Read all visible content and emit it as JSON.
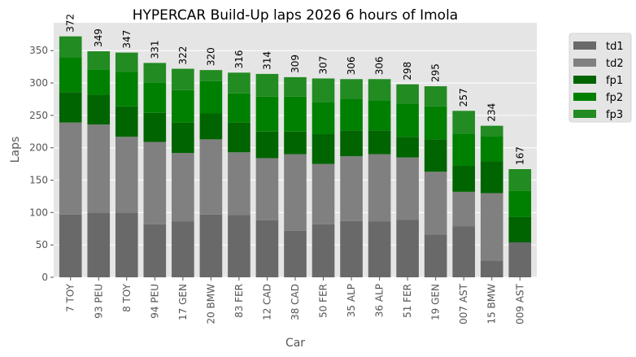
{
  "chart_data": {
    "type": "bar",
    "stacked": true,
    "title": "HYPERCAR Build-Up laps 2026 6 hours of Imola",
    "xlabel": "Car",
    "ylabel": "Laps",
    "ylim": [
      0,
      393
    ],
    "yticks": [
      0,
      50,
      100,
      150,
      200,
      250,
      300,
      350
    ],
    "grid": true,
    "legend_position": "outside-top-right",
    "categories": [
      "7 TOY",
      "93 PEU",
      "8 TOY",
      "94 PEU",
      "17 GEN",
      "20 BMW",
      "83 FER",
      "12 CAD",
      "38 CAD",
      "50 FER",
      "35 ALP",
      "36 ALP",
      "51 FER",
      "19 GEN",
      "007 AST",
      "15 BMW",
      "009 AST"
    ],
    "totals": [
      372,
      349,
      347,
      331,
      322,
      320,
      316,
      314,
      309,
      307,
      306,
      306,
      298,
      295,
      257,
      234,
      167
    ],
    "series": [
      {
        "name": "td1",
        "color": "#696969",
        "values": [
          97,
          100,
          100,
          82,
          86,
          97,
          96,
          88,
          72,
          82,
          87,
          86,
          89,
          66,
          79,
          26,
          54
        ]
      },
      {
        "name": "td2",
        "color": "#808080",
        "values": [
          142,
          136,
          117,
          127,
          106,
          116,
          97,
          96,
          118,
          93,
          100,
          104,
          96,
          97,
          53,
          104,
          0
        ]
      },
      {
        "name": "fp1",
        "color": "#006400",
        "values": [
          47,
          46,
          47,
          45,
          47,
          40,
          46,
          41,
          35,
          46,
          40,
          37,
          32,
          50,
          40,
          49,
          39
        ]
      },
      {
        "name": "fp2",
        "color": "#008000",
        "values": [
          53,
          39,
          53,
          47,
          50,
          50,
          45,
          54,
          54,
          49,
          48,
          46,
          51,
          51,
          50,
          39,
          41
        ]
      },
      {
        "name": "fp3",
        "color": "#228b22",
        "values": [
          33,
          28,
          30,
          30,
          33,
          17,
          32,
          35,
          30,
          37,
          31,
          33,
          30,
          31,
          35,
          16,
          33
        ]
      }
    ]
  }
}
